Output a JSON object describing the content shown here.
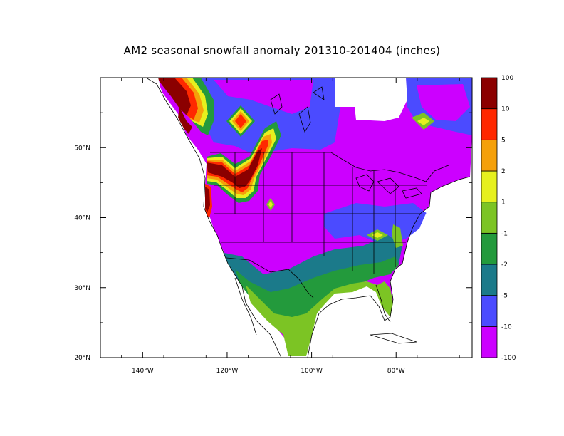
{
  "title": "AM2 seasonal snowfall anomaly 201310-201404 (inches)",
  "map": {
    "lon_range": [
      -150,
      -62
    ],
    "lat_range": [
      20,
      60
    ],
    "lon_ticks": [
      {
        "value": -140,
        "label": "140°W"
      },
      {
        "value": -120,
        "label": "120°W"
      },
      {
        "value": -100,
        "label": "100°W"
      },
      {
        "value": -80,
        "label": "80°W"
      }
    ],
    "lat_ticks": [
      {
        "value": 20,
        "label": "20°N"
      },
      {
        "value": 30,
        "label": "30°N"
      },
      {
        "value": 40,
        "label": "40°N"
      },
      {
        "value": 50,
        "label": "50°N"
      }
    ]
  },
  "colorbar": {
    "levels": [
      "-100",
      "-10",
      "-5",
      "-2",
      "-1",
      "1",
      "2",
      "5",
      "10",
      "100"
    ],
    "colors": [
      "#cc00ff",
      "#4b4bff",
      "#1b7a8a",
      "#239a3c",
      "#7cc424",
      "#e6f01e",
      "#f5a00a",
      "#ff2800",
      "#8b0000"
    ]
  },
  "colors": {
    "background_land": "#cc00ff",
    "ocean": "#ffffff",
    "coastline": "#000000"
  }
}
